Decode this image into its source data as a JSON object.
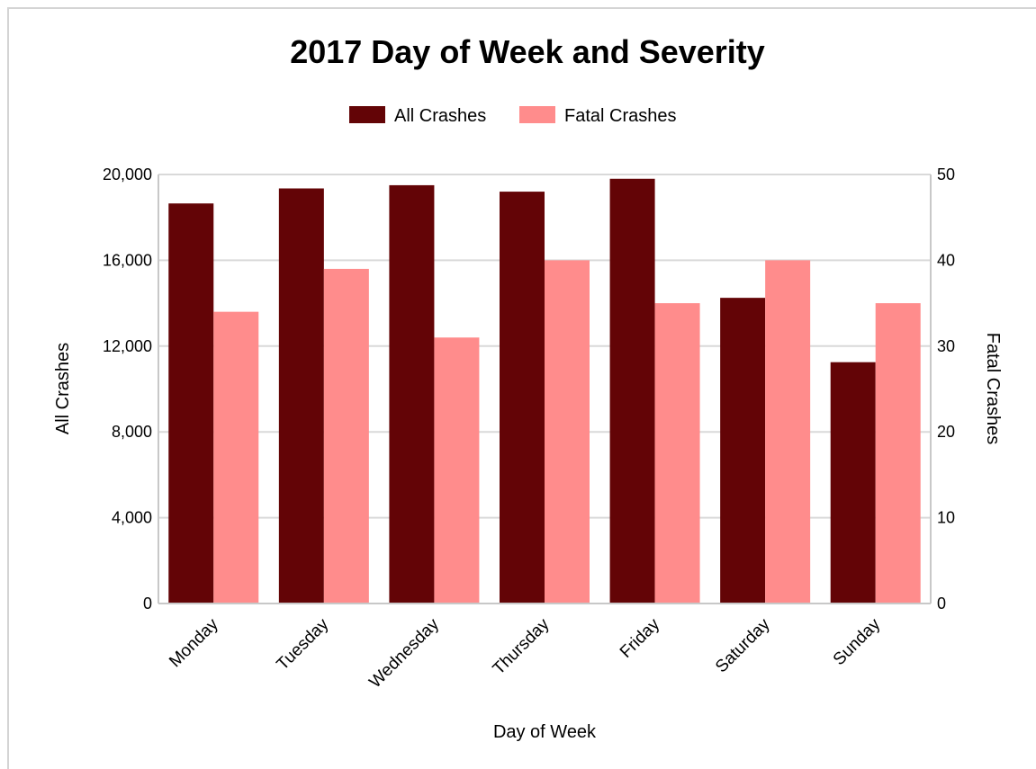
{
  "chart_data": {
    "type": "bar",
    "title": "2017 Day of Week and Severity",
    "xlabel": "Day of Week",
    "ylabel_left": "All Crashes",
    "ylabel_right": "Fatal Crashes",
    "categories": [
      "Monday",
      "Tuesday",
      "Wednesday",
      "Thursday",
      "Friday",
      "Saturday",
      "Sunday"
    ],
    "series": [
      {
        "name": "All Crashes",
        "axis": "left",
        "color": "#630406",
        "values": [
          18650,
          19350,
          19500,
          19200,
          19800,
          14250,
          11250
        ]
      },
      {
        "name": "Fatal Crashes",
        "axis": "right",
        "color": "#ff8c8c",
        "values": [
          34,
          39,
          31,
          40,
          35,
          40,
          35
        ]
      }
    ],
    "ylim_left": [
      0,
      20000
    ],
    "ylim_right": [
      0,
      50
    ],
    "yticks_left": [
      "0",
      "4,000",
      "8,000",
      "12,000",
      "16,000",
      "20,000"
    ],
    "yticks_right": [
      "0",
      "10",
      "20",
      "30",
      "40",
      "50"
    ],
    "grid": true,
    "legend_position": "top-center"
  }
}
